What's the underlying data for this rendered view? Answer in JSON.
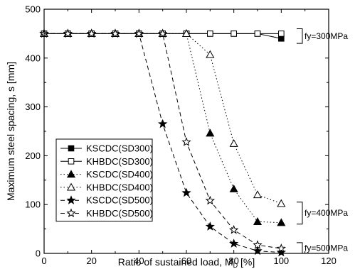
{
  "chart_data": {
    "type": "line",
    "xlabel": "Ratio of sustained load, M",
    "xlabel_subscript": "D",
    "xlabel_suffix": " [%]",
    "ylabel": "Maximum steel spacing, s [mm]",
    "xlim": [
      0,
      120
    ],
    "ylim": [
      0,
      500
    ],
    "xticks": [
      0,
      20,
      40,
      60,
      80,
      100,
      120
    ],
    "yticks": [
      0,
      100,
      200,
      300,
      400,
      500
    ],
    "grid": false,
    "legend_position": "lower-left",
    "series": [
      {
        "name": "KSCDC(SD300)",
        "line": "solid",
        "marker": "square-filled",
        "x": [
          0,
          10,
          20,
          30,
          40,
          50,
          60,
          70,
          80,
          90,
          100
        ],
        "y": [
          450,
          450,
          450,
          450,
          450,
          450,
          450,
          450,
          450,
          450,
          440
        ]
      },
      {
        "name": "KHBDC(SD300)",
        "line": "solid",
        "marker": "square-open",
        "x": [
          0,
          10,
          20,
          30,
          40,
          50,
          60,
          70,
          80,
          90,
          100
        ],
        "y": [
          450,
          450,
          450,
          450,
          450,
          450,
          450,
          450,
          450,
          450,
          450
        ]
      },
      {
        "name": "KSCDC(SD400)",
        "line": "dot",
        "marker": "triangle-filled",
        "x": [
          0,
          10,
          20,
          30,
          40,
          50,
          60,
          70,
          80,
          90,
          100
        ],
        "y": [
          450,
          450,
          450,
          450,
          450,
          450,
          450,
          246,
          132,
          65,
          63
        ]
      },
      {
        "name": "KHBDC(SD400)",
        "line": "dot",
        "marker": "triangle-open",
        "x": [
          0,
          10,
          20,
          30,
          40,
          50,
          60,
          70,
          80,
          90,
          100
        ],
        "y": [
          450,
          450,
          450,
          450,
          450,
          450,
          450,
          407,
          225,
          120,
          102
        ]
      },
      {
        "name": "KSCDC(SD500)",
        "line": "dash",
        "marker": "star-filled",
        "x": [
          0,
          10,
          20,
          30,
          40,
          50,
          60,
          70,
          80,
          90,
          100
        ],
        "y": [
          450,
          450,
          450,
          450,
          450,
          265,
          124,
          55,
          20,
          5,
          2
        ]
      },
      {
        "name": "KHBDC(SD500)",
        "line": "dash",
        "marker": "star-open",
        "x": [
          0,
          10,
          20,
          30,
          40,
          50,
          60,
          70,
          80,
          90,
          100
        ],
        "y": [
          450,
          450,
          450,
          450,
          450,
          450,
          228,
          108,
          48,
          17,
          10
        ]
      }
    ],
    "annotations": [
      {
        "text": "fy=300MPa",
        "y_range": [
          430,
          460
        ]
      },
      {
        "text": "fy=400MPa",
        "y_range": [
          60,
          105
        ]
      },
      {
        "text": "fy=500MPa",
        "y_range": [
          0,
          22
        ]
      }
    ]
  }
}
